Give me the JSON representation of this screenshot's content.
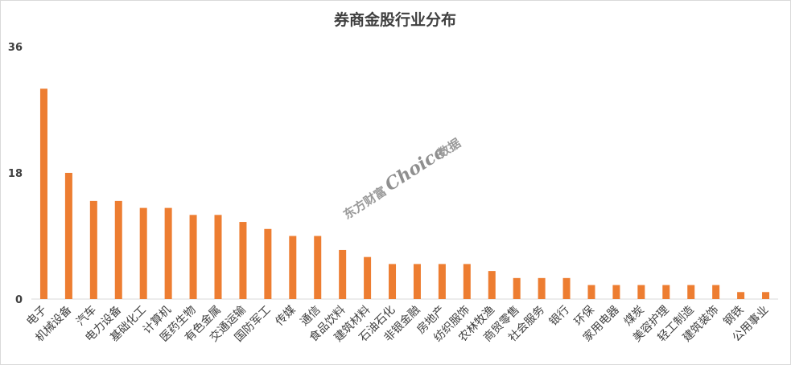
{
  "chart_data": {
    "type": "bar",
    "title": "券商金股行业分布",
    "categories": [
      "电子",
      "机械设备",
      "汽车",
      "电力设备",
      "基础化工",
      "计算机",
      "医药生物",
      "有色金属",
      "交通运输",
      "国防军工",
      "传媒",
      "通信",
      "食品饮料",
      "建筑材料",
      "石油石化",
      "非银金融",
      "房地产",
      "纺织服饰",
      "农林牧渔",
      "商贸零售",
      "社会服务",
      "银行",
      "环保",
      "家用电器",
      "煤炭",
      "美容护理",
      "轻工制造",
      "建筑装饰",
      "钢铁",
      "公用事业"
    ],
    "values": [
      30,
      18,
      14,
      14,
      13,
      13,
      12,
      12,
      11,
      10,
      9,
      9,
      7,
      6,
      5,
      5,
      5,
      5,
      4,
      3,
      3,
      3,
      2,
      2,
      2,
      2,
      2,
      2,
      1,
      1
    ],
    "yticks": [
      "0",
      "18",
      "36"
    ],
    "ylim": [
      0,
      36
    ],
    "grid": false,
    "bar_color": "#ED7D31"
  },
  "watermark": {
    "part1": "东方财富",
    "part2": "Choice",
    "part3": "数据"
  }
}
